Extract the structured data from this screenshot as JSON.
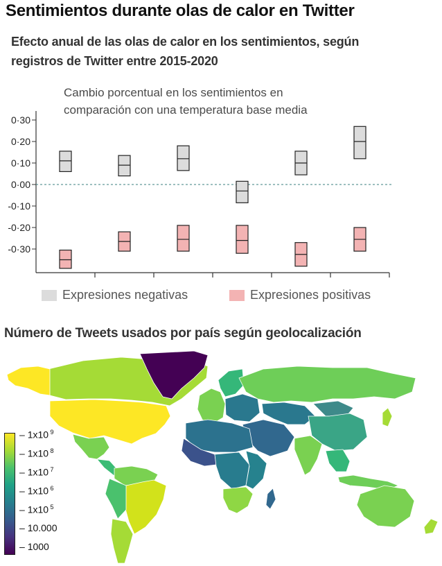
{
  "header": {
    "title": "Sentimientos durante olas de calor en Twitter",
    "subtitle_line1": "Efecto anual de las olas de calor en los sentimientos, según",
    "subtitle_line2": "registros de Twitter entre 2015-2020"
  },
  "chart_data": {
    "type": "box",
    "annotation_line1": "Cambio porcentual en los sentimientos en",
    "annotation_line2": "comparación con una temperatura base media",
    "ylim": [
      -0.41,
      0.35
    ],
    "yticks": [
      "0·30",
      "0·20",
      "0·10",
      "0·00",
      "-0·10",
      "-0·20",
      "-0·30"
    ],
    "ytick_values": [
      0.3,
      0.2,
      0.1,
      0.0,
      -0.1,
      -0.2,
      -0.3
    ],
    "reference_line": 0.0,
    "series": [
      {
        "name": "Expresiones negativas",
        "color": "#dcdcdc",
        "boxes": [
          {
            "low": 0.06,
            "mid": 0.11,
            "high": 0.155
          },
          {
            "low": 0.04,
            "mid": 0.09,
            "high": 0.135
          },
          {
            "low": 0.065,
            "mid": 0.12,
            "high": 0.18
          },
          {
            "low": -0.085,
            "mid": -0.03,
            "high": 0.015
          },
          {
            "low": 0.045,
            "mid": 0.1,
            "high": 0.155
          },
          {
            "low": 0.12,
            "mid": 0.2,
            "high": 0.27
          }
        ]
      },
      {
        "name": "Expresiones positivas",
        "color": "#f3b3b3",
        "boxes": [
          {
            "low": -0.39,
            "mid": -0.35,
            "high": -0.305
          },
          {
            "low": -0.31,
            "mid": -0.265,
            "high": -0.22
          },
          {
            "low": -0.31,
            "mid": -0.255,
            "high": -0.19
          },
          {
            "low": -0.32,
            "mid": -0.26,
            "high": -0.19
          },
          {
            "low": -0.38,
            "mid": -0.325,
            "high": -0.27
          },
          {
            "low": -0.31,
            "mid": -0.255,
            "high": -0.2
          }
        ]
      }
    ]
  },
  "map": {
    "title": "Número de Tweets usados por país según geolocalización",
    "colorbar_labels": [
      {
        "base": "1x10",
        "exp": "9"
      },
      {
        "base": "1x10",
        "exp": "8"
      },
      {
        "base": "1x10",
        "exp": "7"
      },
      {
        "base": "1x10",
        "exp": "6"
      },
      {
        "base": "1x10",
        "exp": "5"
      },
      {
        "base": "10.000",
        "exp": ""
      },
      {
        "base": "1000",
        "exp": ""
      }
    ],
    "colorbar_colors": [
      "#fde725",
      "#a5db36",
      "#4ac16d",
      "#1fa187",
      "#277f8e",
      "#365c8d",
      "#46327e",
      "#440154"
    ],
    "regions": [
      {
        "name": "Alaska",
        "color": "#fde725"
      },
      {
        "name": "Canada",
        "color": "#a5db36"
      },
      {
        "name": "Greenland",
        "color": "#440154"
      },
      {
        "name": "United States",
        "color": "#fde725"
      },
      {
        "name": "Mexico",
        "color": "#7ad151"
      },
      {
        "name": "Central America",
        "color": "#3bbc75"
      },
      {
        "name": "Brazil",
        "color": "#d2e21b"
      },
      {
        "name": "Colombia/Venezuela",
        "color": "#7ad151"
      },
      {
        "name": "Peru/Bolivia",
        "color": "#4ac16d"
      },
      {
        "name": "Argentina/Chile",
        "color": "#a5db36"
      },
      {
        "name": "Western Europe",
        "color": "#7ad151"
      },
      {
        "name": "Scandinavia",
        "color": "#35b779"
      },
      {
        "name": "Eastern Europe",
        "color": "#2a788e"
      },
      {
        "name": "Russia",
        "color": "#6ece58"
      },
      {
        "name": "Kazakhstan/Central Asia",
        "color": "#2a788e"
      },
      {
        "name": "Middle East",
        "color": "#31688e"
      },
      {
        "name": "India",
        "color": "#7ad151"
      },
      {
        "name": "China",
        "color": "#3aa586"
      },
      {
        "name": "Mongolia",
        "color": "#3e8a8a"
      },
      {
        "name": "Southeast Asia",
        "color": "#35b779"
      },
      {
        "name": "Japan",
        "color": "#a5db36"
      },
      {
        "name": "Indonesia",
        "color": "#6ece58"
      },
      {
        "name": "Australia",
        "color": "#7ad151"
      },
      {
        "name": "North Africa",
        "color": "#2c728e"
      },
      {
        "name": "West Africa",
        "color": "#3b528b"
      },
      {
        "name": "Central Africa",
        "color": "#287c8e"
      },
      {
        "name": "East Africa",
        "color": "#26828e"
      },
      {
        "name": "Southern Africa",
        "color": "#8fd744"
      },
      {
        "name": "Madagascar",
        "color": "#31688e"
      },
      {
        "name": "New Zealand",
        "color": "#a5db36"
      }
    ]
  }
}
